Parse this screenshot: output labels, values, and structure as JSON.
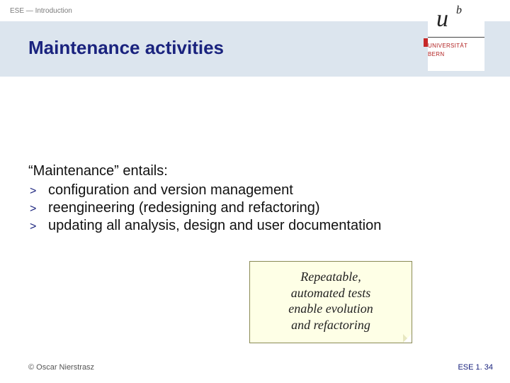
{
  "breadcrumb": "ESE — Introduction",
  "title": "Maintenance activities",
  "logo": {
    "u": "u",
    "b": "b",
    "line1": "UNIVERSITÄT",
    "line2": "BERN"
  },
  "body": {
    "lead": "“Maintenance” entails:",
    "bullets": [
      "configuration and version management",
      "reengineering (redesigning and refactoring)",
      "updating all analysis, design and user documentation"
    ]
  },
  "callout": {
    "l1": "Repeatable,",
    "l2": "automated tests",
    "l3": "enable evolution",
    "l4": "and refactoring"
  },
  "footer": {
    "left": "© Oscar Nierstrasz",
    "right": "ESE 1. 34"
  },
  "colors": {
    "band": "#dce5ee",
    "title": "#1a237e",
    "callout_bg": "#feffe6"
  }
}
